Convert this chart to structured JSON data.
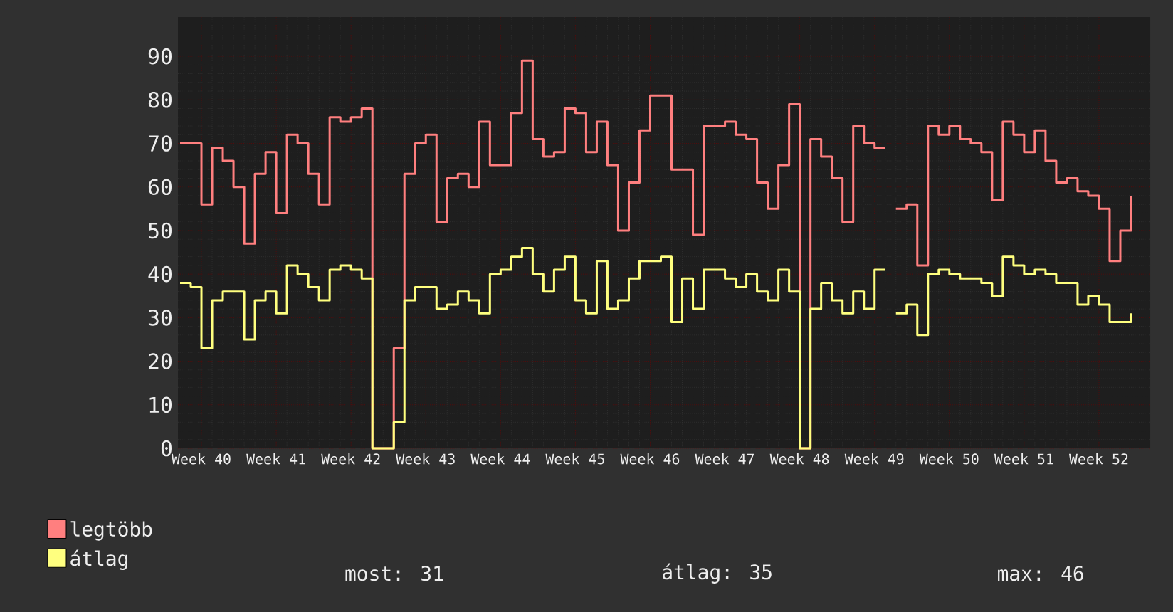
{
  "chart_data": {
    "type": "step",
    "categories": [
      null,
      null,
      "Week 40",
      null,
      null,
      null,
      null,
      null,
      null,
      "Week 41",
      null,
      null,
      null,
      null,
      null,
      null,
      "Week 42",
      null,
      null,
      null,
      null,
      null,
      null,
      "Week 43",
      null,
      null,
      null,
      null,
      null,
      null,
      "Week 44",
      null,
      null,
      null,
      null,
      null,
      null,
      "Week 45",
      null,
      null,
      null,
      null,
      null,
      null,
      "Week 46",
      null,
      null,
      null,
      null,
      null,
      null,
      "Week 47",
      null,
      null,
      null,
      null,
      null,
      null,
      "Week 48",
      null,
      null,
      null,
      null,
      null,
      null,
      "Week 49",
      null,
      null,
      null,
      null,
      null,
      null,
      "Week 50",
      null,
      null,
      null,
      null,
      null,
      null,
      "Week 51",
      null,
      null,
      null,
      null,
      null,
      null,
      "Week 52",
      null,
      null,
      null
    ],
    "series": [
      {
        "name": "legtöbb",
        "color": "#ff7f7f",
        "values": [
          70,
          70,
          56,
          69,
          66,
          60,
          47,
          63,
          68,
          54,
          72,
          70,
          63,
          56,
          76,
          75,
          76,
          78,
          0,
          0,
          23,
          63,
          70,
          72,
          52,
          62,
          63,
          60,
          75,
          65,
          65,
          77,
          89,
          71,
          67,
          68,
          78,
          77,
          68,
          75,
          65,
          50,
          61,
          73,
          81,
          81,
          64,
          64,
          49,
          74,
          74,
          75,
          72,
          71,
          61,
          55,
          65,
          79,
          0,
          71,
          67,
          62,
          52,
          74,
          70,
          69,
          null,
          55,
          56,
          42,
          74,
          72,
          74,
          71,
          70,
          68,
          57,
          75,
          72,
          68,
          73,
          66,
          61,
          62,
          59,
          58,
          55,
          43,
          50,
          58
        ]
      },
      {
        "name": "átlag",
        "color": "#ffff7f",
        "values": [
          38,
          37,
          23,
          34,
          36,
          36,
          25,
          34,
          36,
          31,
          42,
          40,
          37,
          34,
          41,
          42,
          41,
          39,
          0,
          0,
          6,
          34,
          37,
          37,
          32,
          33,
          36,
          34,
          31,
          40,
          41,
          44,
          46,
          40,
          36,
          41,
          44,
          34,
          31,
          43,
          32,
          34,
          39,
          43,
          43,
          44,
          29,
          39,
          32,
          41,
          41,
          39,
          37,
          40,
          36,
          34,
          41,
          36,
          0,
          32,
          38,
          34,
          31,
          36,
          32,
          41,
          null,
          31,
          33,
          26,
          40,
          41,
          40,
          39,
          39,
          38,
          35,
          44,
          42,
          40,
          41,
          40,
          38,
          38,
          33,
          35,
          33,
          29,
          29,
          31
        ]
      }
    ],
    "ylim": [
      0,
      99
    ],
    "yticks": [
      0,
      10,
      20,
      30,
      40,
      50,
      60,
      70,
      80,
      90
    ],
    "grid": true,
    "legend": "bottom left",
    "annotations": [
      "most: 31",
      "átlag: 35",
      "max: 46"
    ]
  }
}
